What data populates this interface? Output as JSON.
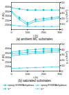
{
  "chart_data": [
    {
      "type": "line",
      "title": "(a)  ambient MC substrates",
      "xlabel": "t (h)",
      "ylabel": "F (N)",
      "y2label": "γₛ (mJ/m²)",
      "x": [
        0,
        50,
        100,
        150,
        200,
        250,
        300
      ],
      "xlim": [
        0,
        300
      ],
      "xticks": [
        0,
        100,
        200,
        300
      ],
      "ylim": [
        150,
        450
      ],
      "yticks": [
        200,
        250,
        300,
        350,
        400
      ],
      "y2lim": [
        0,
        50
      ],
      "y2ticks": [
        0,
        10,
        20,
        30,
        40,
        50
      ],
      "series": [
        {
          "name": "epoxy G/GW/Anhydrous",
          "color": "#00bcd4",
          "marker": "circle",
          "line_style": "solid",
          "values": [
            350,
            280,
            220,
            260,
            270,
            280,
            290
          ],
          "errors": [
            20,
            20,
            20,
            20,
            20,
            20,
            20
          ]
        },
        {
          "name": "epoxy F/GW/Anhydrous",
          "color": "#00bcd4",
          "marker": "x",
          "line_style": "solid",
          "values": [
            340,
            260,
            200,
            240,
            250,
            265,
            275
          ],
          "errors": [
            18,
            18,
            18,
            18,
            18,
            18,
            18
          ]
        },
        {
          "name": "γₛᵈ",
          "color": "#00bcd4",
          "marker": "circle",
          "line_style": "dashed",
          "axis": "y2",
          "values": [
            40,
            38,
            36,
            36,
            36,
            36,
            36
          ]
        },
        {
          "name": "γₛᵖ",
          "color": "#00bcd4",
          "marker": "x",
          "line_style": "dashed",
          "axis": "y2",
          "values": [
            8,
            6.5,
            5.5,
            5.5,
            5.5,
            5.5,
            5.5
          ]
        }
      ]
    },
    {
      "type": "line",
      "title": "(b)  saturated substrates",
      "xlabel": "t (h)",
      "ylabel": "F (N)",
      "y2label": "γₛ (mJ/m²)",
      "x": [
        0,
        50,
        100,
        150,
        200,
        250,
        300
      ],
      "xlim": [
        0,
        300
      ],
      "xticks": [
        0,
        100,
        200,
        300
      ],
      "ylim": [
        150,
        450
      ],
      "yticks": [
        200,
        250,
        300,
        350,
        400
      ],
      "y2lim": [
        0,
        50
      ],
      "y2ticks": [
        0,
        10,
        20,
        30,
        40,
        50
      ],
      "legend": "bottom",
      "series": [
        {
          "name": "epoxy G/GW/Anhydrous",
          "color": "#00bcd4",
          "marker": "circle",
          "line_style": "solid",
          "values": [
            340,
            350,
            360,
            365,
            370,
            375,
            380
          ],
          "errors": [
            20,
            20,
            20,
            20,
            20,
            20,
            20
          ]
        },
        {
          "name": "epoxy F/GW/Anhydrous",
          "color": "#00bcd4",
          "marker": "x",
          "line_style": "solid",
          "values": [
            320,
            330,
            340,
            348,
            352,
            358,
            362
          ],
          "errors": [
            18,
            18,
            18,
            18,
            18,
            18,
            18
          ]
        },
        {
          "name": "γₛᵈ",
          "color": "#00bcd4",
          "marker": "circle",
          "line_style": "dashed",
          "axis": "y2",
          "values": [
            35,
            37,
            39,
            40,
            41,
            41,
            41
          ]
        },
        {
          "name": "γₛᵖ",
          "color": "#00bcd4",
          "marker": "x",
          "line_style": "dashed",
          "axis": "y2",
          "values": [
            5,
            5.5,
            6,
            6.5,
            7,
            7.5,
            8
          ]
        }
      ]
    }
  ]
}
